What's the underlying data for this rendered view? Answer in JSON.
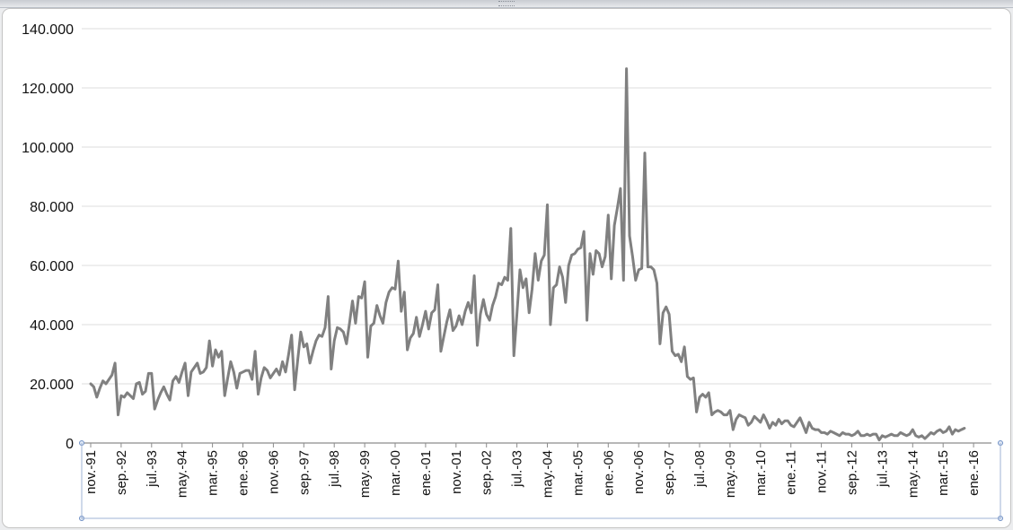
{
  "chart_data": {
    "type": "line",
    "title": "",
    "xlabel": "",
    "ylabel": "",
    "ylim": [
      0,
      140000
    ],
    "yticks": [
      0,
      20000,
      40000,
      60000,
      80000,
      100000,
      120000,
      140000
    ],
    "ytick_labels": [
      "0",
      "20.000",
      "40.000",
      "60.000",
      "80.000",
      "100.000",
      "120.000",
      "140.000"
    ],
    "xtick_labels": [
      "nov.-91",
      "sep.-92",
      "jul.-93",
      "may.-94",
      "mar.-95",
      "ene.-96",
      "nov.-96",
      "sep.-97",
      "jul.-98",
      "may.-99",
      "mar.-00",
      "ene.-01",
      "nov.-01",
      "sep.-02",
      "jul.-03",
      "may.-04",
      "mar.-05",
      "ene.-06",
      "nov.-06",
      "sep.-07",
      "jul.-08",
      "may.-09",
      "mar.-10",
      "ene.-11",
      "nov.-11",
      "sep.-12",
      "jul.-13",
      "may.-14",
      "mar.-15",
      "ene.-16"
    ],
    "grid": true,
    "legend": "none",
    "line_color": "#808080",
    "x_start": "1991-11",
    "x_end": "2016-03",
    "series": [
      {
        "values": [
          20000,
          19000,
          15500,
          18500,
          21000,
          20000,
          21500,
          23000,
          27000,
          9500,
          16000,
          15500,
          17000,
          16000,
          15000,
          20000,
          20500,
          16500,
          17500,
          23500,
          23500,
          11500,
          14500,
          17000,
          19000,
          16500,
          14500,
          21000,
          22500,
          20500,
          24000,
          27000,
          16000,
          24000,
          25500,
          27000,
          23500,
          24000,
          25500,
          34500,
          26000,
          31500,
          29000,
          31000,
          16000,
          22000,
          27500,
          24000,
          18500,
          23500,
          24000,
          24500,
          24500,
          21500,
          31000,
          16500,
          22000,
          25500,
          24500,
          22000,
          23500,
          25000,
          23000,
          27500,
          24000,
          30000,
          36500,
          18000,
          28000,
          37500,
          32500,
          33500,
          27000,
          31000,
          34500,
          36500,
          36000,
          39000,
          49500,
          25000,
          34500,
          39000,
          38500,
          37500,
          33500,
          40500,
          48000,
          40500,
          49500,
          49000,
          54500,
          29000,
          39500,
          40500,
          46500,
          43000,
          40500,
          47500,
          51000,
          52500,
          52000,
          61500,
          44500,
          51000,
          31500,
          35500,
          37000,
          42500,
          36000,
          40000,
          44500,
          38500,
          44000,
          45000,
          53500,
          31000,
          36000,
          41000,
          45000,
          38000,
          39500,
          43000,
          40000,
          44500,
          47500,
          44000,
          56500,
          33000,
          43500,
          48500,
          43500,
          41500,
          46500,
          49500,
          54000,
          53500,
          56000,
          55000,
          72500,
          29500,
          43500,
          58500,
          52500,
          55500,
          44000,
          52000,
          64000,
          55000,
          61500,
          63500,
          80500,
          40000,
          52500,
          53500,
          59500,
          56000,
          47500,
          60000,
          63500,
          64000,
          65500,
          66000,
          71500,
          41500,
          64000,
          57000,
          65000,
          64000,
          59500,
          63000,
          77000,
          55500,
          73500,
          79500,
          86000,
          55000,
          126500,
          70000,
          63000,
          55000,
          58500,
          59000,
          98000,
          59500,
          59500,
          58500,
          54000,
          33500,
          44000,
          46000,
          43500,
          31000,
          29500,
          30000,
          27500,
          32500,
          22500,
          21500,
          22000,
          10500,
          15500,
          16500,
          15500,
          17000,
          9500,
          10500,
          11000,
          10500,
          9500,
          9500,
          11000,
          4500,
          8000,
          9500,
          9000,
          8500,
          6000,
          7000,
          9000,
          8000,
          7000,
          9500,
          7500,
          5000,
          7000,
          6000,
          8000,
          6500,
          7500,
          7500,
          6000,
          5500,
          7000,
          8500,
          6000,
          3500,
          7000,
          5000,
          4500,
          4500,
          3500,
          3500,
          3000,
          4000,
          3500,
          3000,
          2500,
          3500,
          3000,
          3000,
          2500,
          3000,
          4000,
          2500,
          2500,
          3000,
          2500,
          3000,
          3000,
          1000,
          2500,
          2000,
          2500,
          3000,
          2500,
          2500,
          3500,
          3000,
          2500,
          3000,
          4500,
          2500,
          2000,
          2500,
          1500,
          2500,
          3500,
          3000,
          4000,
          4500,
          3500,
          4000,
          5500,
          3000,
          4500,
          4000,
          4500,
          5000
        ]
      }
    ]
  }
}
